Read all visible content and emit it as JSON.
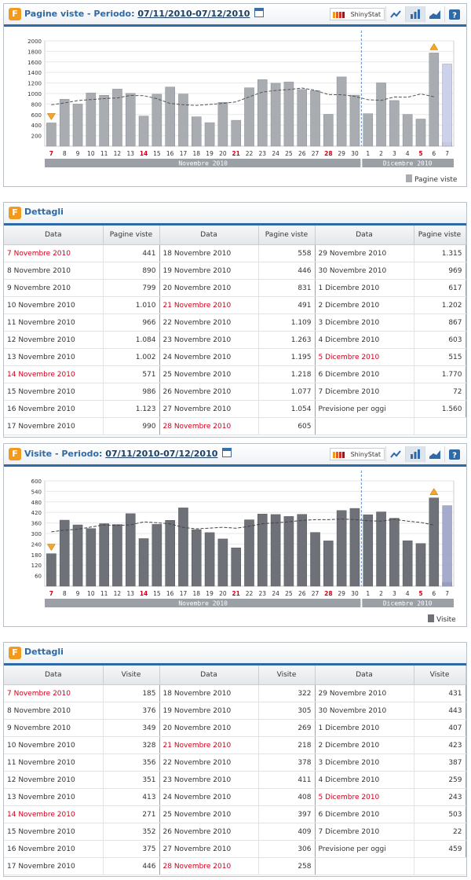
{
  "panels": [
    {
      "id": "pv",
      "title": "Pagine viste - Periodo: ",
      "period": "07/11/2010-07/12/2010",
      "brand": "ShinyStat",
      "legend": "Pagine viste",
      "chart_data": {
        "type": "bar",
        "ylim": [
          0,
          2000
        ],
        "yticks": [
          200,
          400,
          600,
          800,
          1000,
          1200,
          1400,
          1600,
          1800,
          2000
        ],
        "categories": [
          "7",
          "8",
          "9",
          "10",
          "11",
          "12",
          "13",
          "14",
          "15",
          "16",
          "17",
          "18",
          "19",
          "20",
          "21",
          "22",
          "23",
          "24",
          "25",
          "26",
          "27",
          "28",
          "29",
          "30",
          "1",
          "2",
          "3",
          "4",
          "5",
          "6",
          "7"
        ],
        "red_categories": [
          0,
          7,
          14,
          21,
          28
        ],
        "values": [
          441,
          890,
          799,
          1010,
          966,
          1084,
          1002,
          571,
          986,
          1123,
          990,
          558,
          446,
          831,
          491,
          1109,
          1263,
          1195,
          1218,
          1077,
          1054,
          605,
          1315,
          969,
          617,
          1202,
          867,
          603,
          515,
          1770,
          72
        ],
        "forecast": 1560,
        "month_labels": [
          "Novembre 2010",
          "Dicembre 2010"
        ],
        "colors": {
          "bar": "#a9adb2",
          "bar_stroke": "#8a8e93",
          "forecast": "#c9cde8",
          "trend": "#555555"
        }
      },
      "details": {
        "title": "Dettagli",
        "headers": [
          "Data",
          "Pagine viste"
        ],
        "columns": [
          [
            [
              "7 Novembre 2010",
              "441",
              true
            ],
            [
              "8 Novembre 2010",
              "890",
              false
            ],
            [
              "9 Novembre 2010",
              "799",
              false
            ],
            [
              "10 Novembre 2010",
              "1.010",
              false
            ],
            [
              "11 Novembre 2010",
              "966",
              false
            ],
            [
              "12 Novembre 2010",
              "1.084",
              false
            ],
            [
              "13 Novembre 2010",
              "1.002",
              false
            ],
            [
              "14 Novembre 2010",
              "571",
              true
            ],
            [
              "15 Novembre 2010",
              "986",
              false
            ],
            [
              "16 Novembre 2010",
              "1.123",
              false
            ],
            [
              "17 Novembre 2010",
              "990",
              false
            ]
          ],
          [
            [
              "18 Novembre 2010",
              "558",
              false
            ],
            [
              "19 Novembre 2010",
              "446",
              false
            ],
            [
              "20 Novembre 2010",
              "831",
              false
            ],
            [
              "21 Novembre 2010",
              "491",
              true
            ],
            [
              "22 Novembre 2010",
              "1.109",
              false
            ],
            [
              "23 Novembre 2010",
              "1.263",
              false
            ],
            [
              "24 Novembre 2010",
              "1.195",
              false
            ],
            [
              "25 Novembre 2010",
              "1.218",
              false
            ],
            [
              "26 Novembre 2010",
              "1.077",
              false
            ],
            [
              "27 Novembre 2010",
              "1.054",
              false
            ],
            [
              "28 Novembre 2010",
              "605",
              true
            ]
          ],
          [
            [
              "29 Novembre 2010",
              "1.315",
              false
            ],
            [
              "30 Novembre 2010",
              "969",
              false
            ],
            [
              "1 Dicembre 2010",
              "617",
              false
            ],
            [
              "2 Dicembre 2010",
              "1.202",
              false
            ],
            [
              "3 Dicembre 2010",
              "867",
              false
            ],
            [
              "4 Dicembre 2010",
              "603",
              false
            ],
            [
              "5 Dicembre 2010",
              "515",
              true
            ],
            [
              "6 Dicembre 2010",
              "1.770",
              false
            ],
            [
              "7 Dicembre 2010",
              "72",
              false
            ],
            [
              "Previsione per oggi",
              "1.560",
              false
            ],
            [
              "",
              ""
            ]
          ]
        ]
      }
    },
    {
      "id": "vi",
      "title": "Visite - Periodo: ",
      "period": "07/11/2010-07/12/2010",
      "brand": "ShinyStat",
      "legend": "Visite",
      "chart_data": {
        "type": "bar",
        "ylim": [
          0,
          600
        ],
        "yticks": [
          60,
          120,
          180,
          240,
          300,
          360,
          420,
          480,
          540,
          600
        ],
        "categories": [
          "7",
          "8",
          "9",
          "10",
          "11",
          "12",
          "13",
          "14",
          "15",
          "16",
          "17",
          "18",
          "19",
          "20",
          "21",
          "22",
          "23",
          "24",
          "25",
          "26",
          "27",
          "28",
          "29",
          "30",
          "1",
          "2",
          "3",
          "4",
          "5",
          "6",
          "7"
        ],
        "red_categories": [
          0,
          7,
          14,
          21,
          28
        ],
        "values": [
          185,
          376,
          349,
          328,
          356,
          351,
          413,
          271,
          352,
          375,
          446,
          322,
          305,
          269,
          218,
          378,
          411,
          408,
          397,
          409,
          306,
          258,
          431,
          443,
          407,
          423,
          387,
          259,
          243,
          503,
          22
        ],
        "forecast": 459,
        "month_labels": [
          "Novembre 2010",
          "Dicembre 2010"
        ],
        "colors": {
          "bar": "#6e7278",
          "bar_stroke": "#55595e",
          "forecast": "#9da2c6",
          "trend": "#444444"
        }
      },
      "details": {
        "title": "Dettagli",
        "headers": [
          "Data",
          "Visite"
        ],
        "columns": [
          [
            [
              "7 Novembre 2010",
              "185",
              true
            ],
            [
              "8 Novembre 2010",
              "376",
              false
            ],
            [
              "9 Novembre 2010",
              "349",
              false
            ],
            [
              "10 Novembre 2010",
              "328",
              false
            ],
            [
              "11 Novembre 2010",
              "356",
              false
            ],
            [
              "12 Novembre 2010",
              "351",
              false
            ],
            [
              "13 Novembre 2010",
              "413",
              false
            ],
            [
              "14 Novembre 2010",
              "271",
              true
            ],
            [
              "15 Novembre 2010",
              "352",
              false
            ],
            [
              "16 Novembre 2010",
              "375",
              false
            ],
            [
              "17 Novembre 2010",
              "446",
              false
            ]
          ],
          [
            [
              "18 Novembre 2010",
              "322",
              false
            ],
            [
              "19 Novembre 2010",
              "305",
              false
            ],
            [
              "20 Novembre 2010",
              "269",
              false
            ],
            [
              "21 Novembre 2010",
              "218",
              true
            ],
            [
              "22 Novembre 2010",
              "378",
              false
            ],
            [
              "23 Novembre 2010",
              "411",
              false
            ],
            [
              "24 Novembre 2010",
              "408",
              false
            ],
            [
              "25 Novembre 2010",
              "397",
              false
            ],
            [
              "26 Novembre 2010",
              "409",
              false
            ],
            [
              "27 Novembre 2010",
              "306",
              false
            ],
            [
              "28 Novembre 2010",
              "258",
              true
            ]
          ],
          [
            [
              "29 Novembre 2010",
              "431",
              false
            ],
            [
              "30 Novembre 2010",
              "443",
              false
            ],
            [
              "1 Dicembre 2010",
              "407",
              false
            ],
            [
              "2 Dicembre 2010",
              "423",
              false
            ],
            [
              "3 Dicembre 2010",
              "387",
              false
            ],
            [
              "4 Dicembre 2010",
              "259",
              false
            ],
            [
              "5 Dicembre 2010",
              "243",
              true
            ],
            [
              "6 Dicembre 2010",
              "503",
              false
            ],
            [
              "7 Dicembre 2010",
              "22",
              false
            ],
            [
              "Previsione per oggi",
              "459",
              false
            ],
            [
              "",
              ""
            ]
          ]
        ]
      }
    }
  ],
  "toolbar": {
    "icons": [
      "line-chart-icon",
      "bar-chart-icon",
      "area-chart-icon",
      "help-icon"
    ],
    "help_label": "?"
  }
}
